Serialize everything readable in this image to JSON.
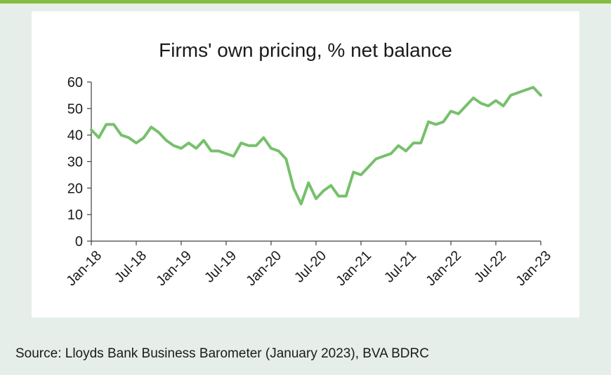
{
  "colors": {
    "accent_rule": "#84bd3f",
    "series": "#77c06c",
    "axis": "#404040",
    "background": "#e6eee9"
  },
  "source_text": "Source: Lloyds Bank Business Barometer (January 2023), BVA BDRC",
  "chart_data": {
    "type": "line",
    "title": "Firms' own pricing, % net balance",
    "xlabel": "",
    "ylabel": "",
    "ylim": [
      0,
      60
    ],
    "yticks": [
      0,
      10,
      20,
      30,
      40,
      50,
      60
    ],
    "xticks": [
      "Jan-18",
      "Jul-18",
      "Jan-19",
      "Jul-19",
      "Jan-20",
      "Jul-20",
      "Jan-21",
      "Jul-21",
      "Jan-22",
      "Jul-22",
      "Jan-23"
    ],
    "x": [
      "Jan-18",
      "Feb-18",
      "Mar-18",
      "Apr-18",
      "May-18",
      "Jun-18",
      "Jul-18",
      "Aug-18",
      "Sep-18",
      "Oct-18",
      "Nov-18",
      "Dec-18",
      "Jan-19",
      "Feb-19",
      "Mar-19",
      "Apr-19",
      "May-19",
      "Jun-19",
      "Jul-19",
      "Aug-19",
      "Sep-19",
      "Oct-19",
      "Nov-19",
      "Dec-19",
      "Jan-20",
      "Feb-20",
      "Mar-20",
      "Apr-20",
      "May-20",
      "Jun-20",
      "Jul-20",
      "Aug-20",
      "Sep-20",
      "Oct-20",
      "Nov-20",
      "Dec-20",
      "Jan-21",
      "Feb-21",
      "Mar-21",
      "Apr-21",
      "May-21",
      "Jun-21",
      "Jul-21",
      "Aug-21",
      "Sep-21",
      "Oct-21",
      "Nov-21",
      "Dec-21",
      "Jan-22",
      "Feb-22",
      "Mar-22",
      "Apr-22",
      "May-22",
      "Jun-22",
      "Jul-22",
      "Aug-22",
      "Sep-22",
      "Oct-22",
      "Nov-22",
      "Dec-22",
      "Jan-23"
    ],
    "series": [
      {
        "values": [
          42,
          39,
          44,
          44,
          40,
          39,
          37,
          39,
          43,
          41,
          38,
          36,
          35,
          37,
          35,
          38,
          34,
          34,
          33,
          32,
          37,
          36,
          36,
          39,
          35,
          34,
          31,
          20,
          14,
          22,
          16,
          19,
          21,
          17,
          17,
          26,
          25,
          28,
          31,
          32,
          33,
          36,
          34,
          37,
          37,
          45,
          44,
          45,
          49,
          48,
          51,
          54,
          52,
          51,
          53,
          51,
          55,
          56,
          57,
          58,
          55
        ]
      }
    ],
    "grid": false,
    "legend": "none"
  }
}
